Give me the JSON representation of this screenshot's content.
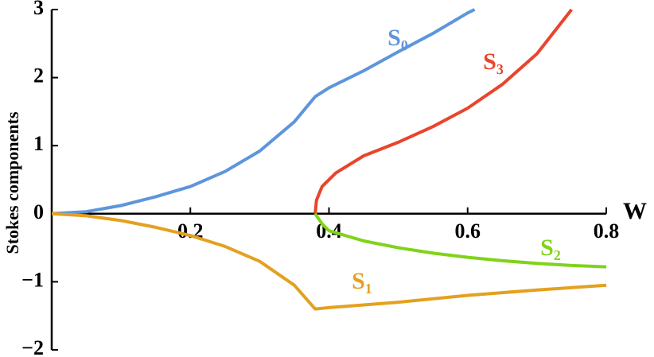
{
  "chart_data": {
    "type": "line",
    "x_label": "W",
    "y_label": "Stokes  components",
    "xlim": [
      0,
      0.8
    ],
    "ylim": [
      -2,
      3
    ],
    "xticks": [
      0.2,
      0.4,
      0.6,
      0.8
    ],
    "yticks": [
      {
        "value": -2,
        "label": "−2"
      },
      {
        "value": -1,
        "label": "−1"
      },
      0,
      1,
      2,
      3
    ],
    "series": [
      {
        "name": "S₀",
        "color": "#5e95db",
        "x": [
          0,
          0.05,
          0.1,
          0.15,
          0.2,
          0.25,
          0.3,
          0.35,
          0.38,
          0.4,
          0.45,
          0.5,
          0.55,
          0.6,
          0.61
        ],
        "values": [
          0,
          0.03,
          0.12,
          0.25,
          0.4,
          0.62,
          0.92,
          1.35,
          1.72,
          1.85,
          2.1,
          2.38,
          2.65,
          2.95,
          3.0
        ]
      },
      {
        "name": "S₃",
        "color": "#e8452c",
        "x": [
          0.38,
          0.382,
          0.39,
          0.41,
          0.45,
          0.5,
          0.55,
          0.6,
          0.65,
          0.7,
          0.75
        ],
        "values": [
          0,
          0.2,
          0.4,
          0.6,
          0.85,
          1.05,
          1.28,
          1.55,
          1.9,
          2.35,
          3.0
        ]
      },
      {
        "name": "S₂",
        "color": "#80d31a",
        "x": [
          0.38,
          0.39,
          0.4,
          0.45,
          0.5,
          0.55,
          0.6,
          0.65,
          0.7,
          0.75,
          0.8
        ],
        "values": [
          0,
          -0.15,
          -0.25,
          -0.4,
          -0.5,
          -0.58,
          -0.64,
          -0.69,
          -0.73,
          -0.76,
          -0.78
        ]
      },
      {
        "name": "S₁",
        "color": "#e4a020",
        "x": [
          0,
          0.05,
          0.1,
          0.15,
          0.2,
          0.25,
          0.3,
          0.35,
          0.38,
          0.4,
          0.5,
          0.6,
          0.7,
          0.8
        ],
        "values": [
          0,
          -0.03,
          -0.1,
          -0.2,
          -0.32,
          -0.48,
          -0.7,
          -1.05,
          -1.4,
          -1.38,
          -1.3,
          -1.2,
          -1.12,
          -1.05
        ]
      }
    ]
  }
}
